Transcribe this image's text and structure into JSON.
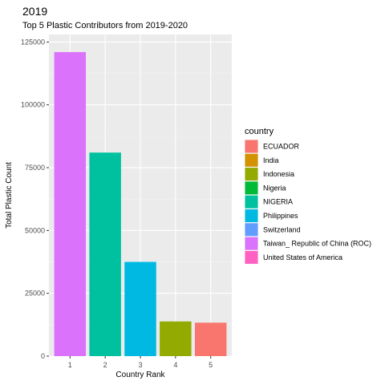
{
  "chart_data": {
    "type": "bar",
    "title": "2019",
    "subtitle": "Top 5 Plastic Contributors from 2019-2020",
    "xlabel": "Country Rank",
    "ylabel": "Total Plastic Count",
    "categories": [
      "1",
      "2",
      "3",
      "4",
      "5"
    ],
    "values": [
      121000,
      81000,
      37500,
      13800,
      13300
    ],
    "bar_country": [
      "Taiwan_ Republic of China (ROC)",
      "NIGERIA",
      "Philippines",
      "Indonesia",
      "ECUADOR"
    ],
    "ylim": [
      0,
      128000
    ],
    "yticks": [
      0,
      25000,
      50000,
      75000,
      100000,
      125000
    ],
    "ytick_labels": [
      "0",
      "25000",
      "50000",
      "75000",
      "100000",
      "125000"
    ],
    "grid": true,
    "legend": {
      "title": "country",
      "placement": "right",
      "entries": [
        {
          "label": "ECUADOR",
          "color": "#F8766D"
        },
        {
          "label": "India",
          "color": "#D39200"
        },
        {
          "label": "Indonesia",
          "color": "#93AA00"
        },
        {
          "label": "Nigeria",
          "color": "#00BA38"
        },
        {
          "label": "NIGERIA",
          "color": "#00C19F"
        },
        {
          "label": "Philippines",
          "color": "#00B9E3"
        },
        {
          "label": "Switzerland",
          "color": "#619CFF"
        },
        {
          "label": "Taiwan_ Republic of China (ROC)",
          "color": "#DB72FB"
        },
        {
          "label": "United States of America",
          "color": "#FF61C3"
        }
      ]
    },
    "colors": {
      "panel": "#EBEBEB",
      "grid_major": "#FFFFFF",
      "grid_minor": "#F5F5F5"
    }
  }
}
